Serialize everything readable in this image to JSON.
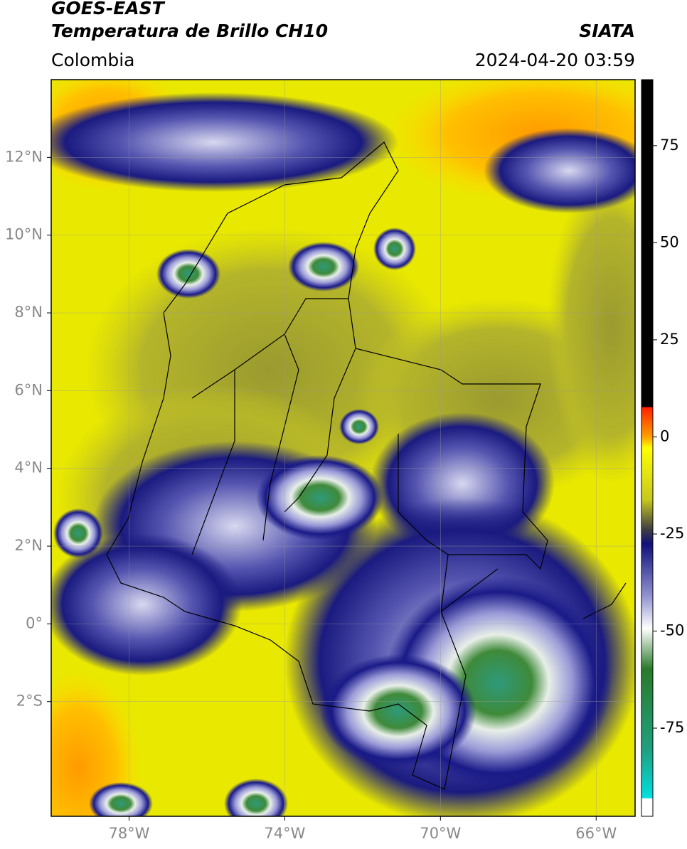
{
  "header": {
    "title": "GOES-EAST",
    "subtitle": "Temperatura de Brillo CH10",
    "source": "SIATA",
    "region": "Colombia",
    "datetime": "2024-04-20 03:59"
  },
  "map": {
    "xlim": [
      -80,
      -65
    ],
    "ylim": [
      -4.95,
      14
    ],
    "lon_ticks": [
      {
        "value": -78,
        "label": "78°W"
      },
      {
        "value": -74,
        "label": "74°W"
      },
      {
        "value": -70,
        "label": "70°W"
      },
      {
        "value": -66,
        "label": "66°W"
      }
    ],
    "lat_ticks": [
      {
        "value": 12,
        "label": "12°N"
      },
      {
        "value": 10,
        "label": "10°N"
      },
      {
        "value": 8,
        "label": "8°N"
      },
      {
        "value": 6,
        "label": "6°N"
      },
      {
        "value": 4,
        "label": "4°N"
      },
      {
        "value": 2,
        "label": "2°N"
      },
      {
        "value": 0,
        "label": "0°"
      },
      {
        "value": -2,
        "label": "2°S"
      }
    ]
  },
  "colorbar": {
    "lim": [
      -97.7,
      92
    ],
    "ticks": [
      75,
      50,
      25,
      0,
      -25,
      -50,
      -75
    ]
  }
}
